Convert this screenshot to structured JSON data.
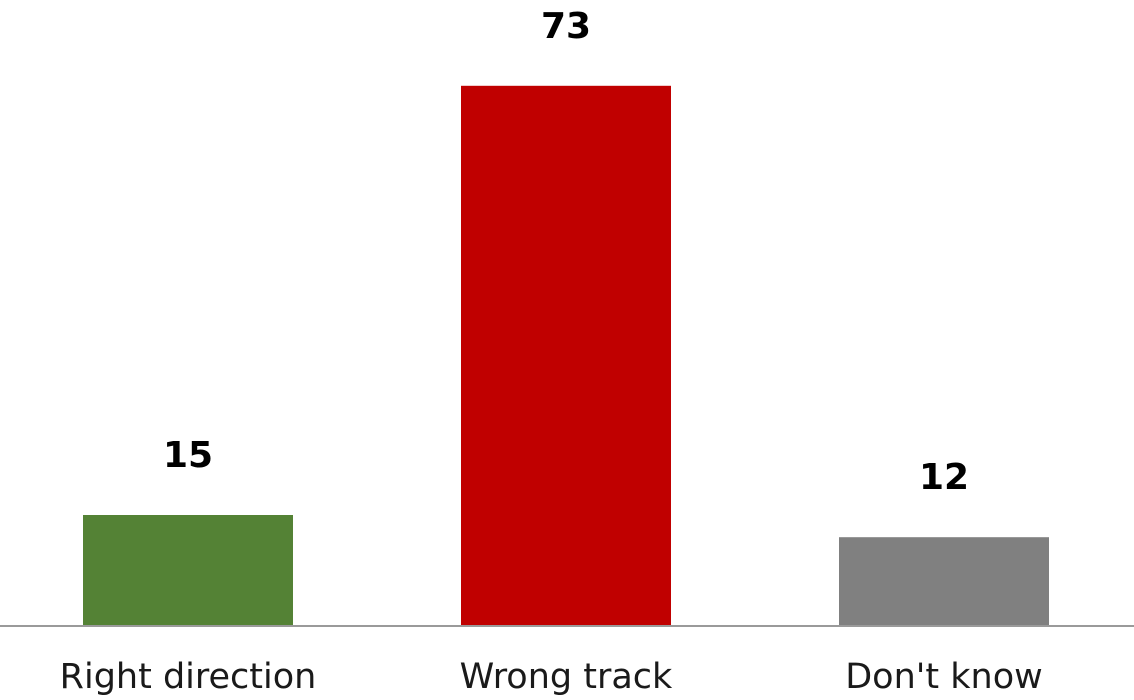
{
  "chart_data": {
    "type": "bar",
    "categories": [
      "Right direction",
      "Wrong track",
      "Don't know"
    ],
    "values": [
      15,
      73,
      12
    ],
    "data_labels": [
      "15",
      "73",
      "12"
    ],
    "colors": [
      "#548235",
      "#C00000",
      "#808080"
    ],
    "ylim": [
      0,
      80
    ],
    "title": "",
    "xlabel": "",
    "ylabel": "",
    "grid": false,
    "legend": "none"
  }
}
